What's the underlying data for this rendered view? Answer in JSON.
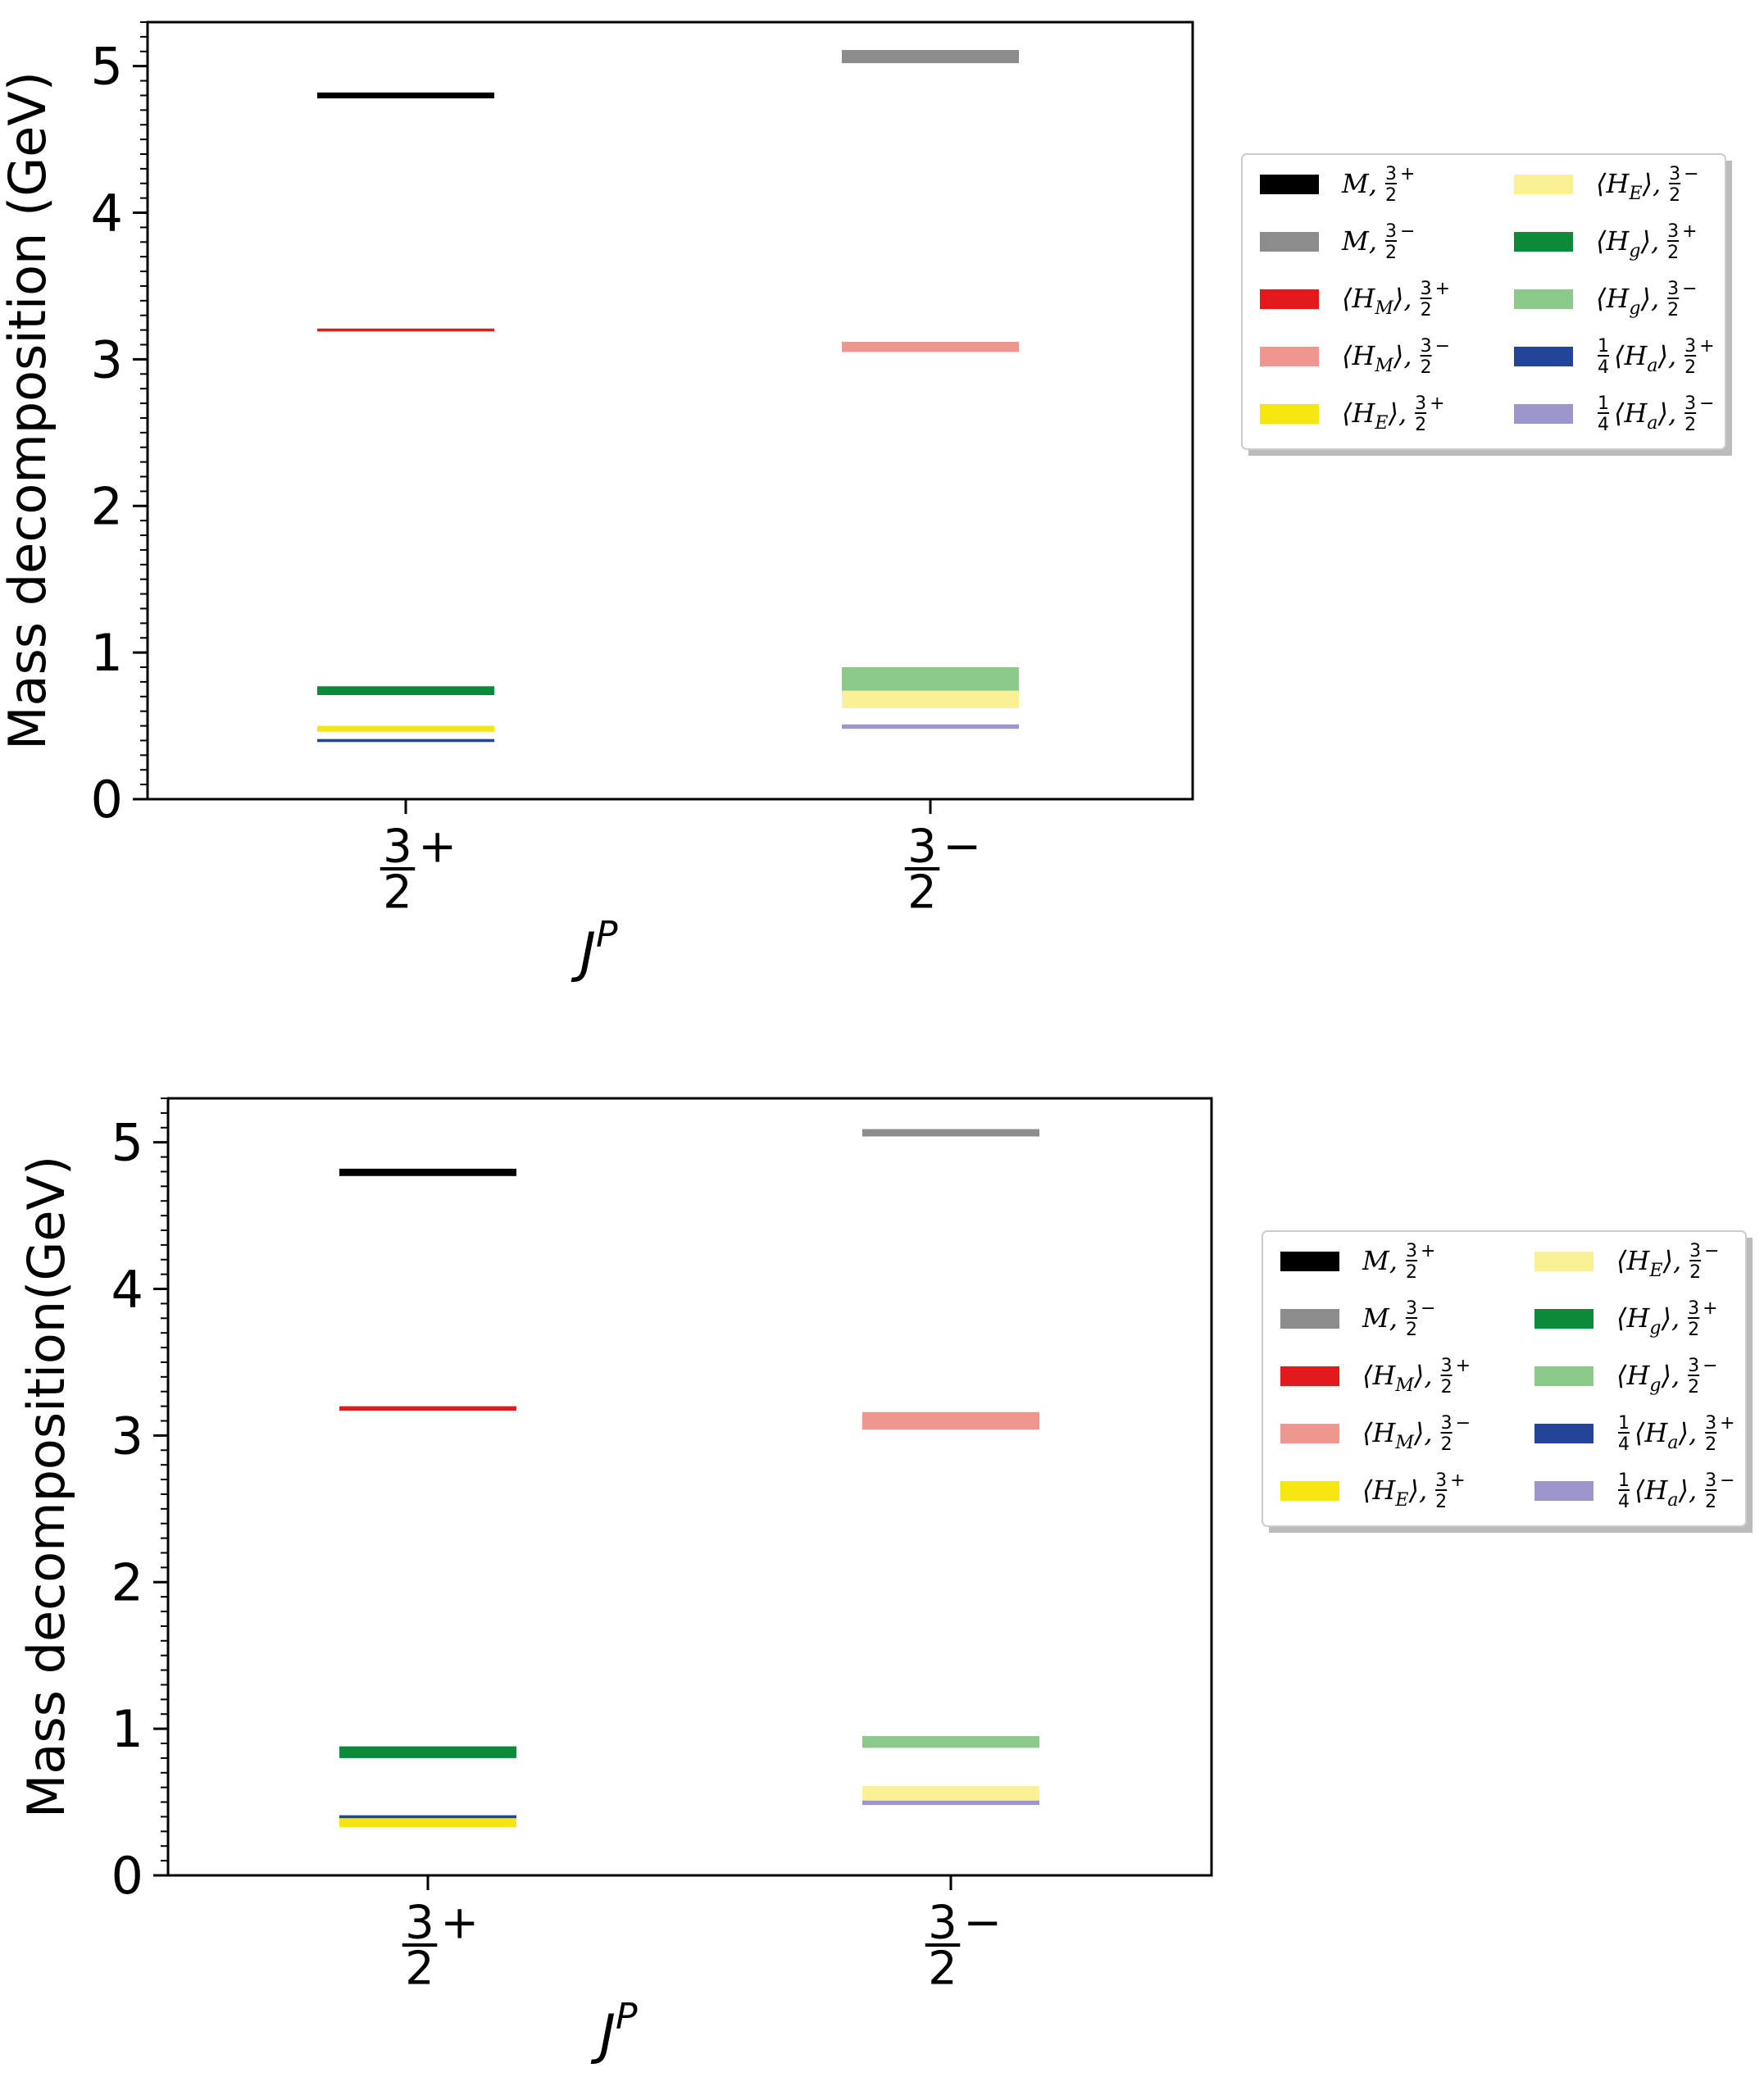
{
  "chart_data": [
    {
      "type": "bar",
      "categories": [
        "3/2+",
        "3/2−"
      ],
      "xlabel": "J^P",
      "ylabel": "Mass decomposition (GeV)",
      "ylim": [
        0,
        5.3
      ],
      "yticks": [
        0,
        1,
        2,
        3,
        4,
        5
      ],
      "legend_placement": "right",
      "series": [
        {
          "name": "M, 3/2+",
          "color": "#000000",
          "category": 0,
          "low": 4.78,
          "high": 4.82
        },
        {
          "name": "M, 3/2−",
          "color": "#8c8c8c",
          "category": 1,
          "low": 5.02,
          "high": 5.11
        },
        {
          "name": "⟨H_M⟩, 3/2+",
          "color": "#e31a1c",
          "category": 0,
          "low": 3.19,
          "high": 3.21
        },
        {
          "name": "⟨H_M⟩, 3/2−",
          "color": "#f1958f",
          "category": 1,
          "low": 3.05,
          "high": 3.12
        },
        {
          "name": "⟨H_E⟩, 3/2+",
          "color": "#f5e60f",
          "category": 0,
          "low": 0.46,
          "high": 0.5
        },
        {
          "name": "⟨H_E⟩, 3/2−",
          "color": "#fbf096",
          "category": 1,
          "low": 0.62,
          "high": 0.74
        },
        {
          "name": "⟨H_g⟩, 3/2+",
          "color": "#0b8a3a",
          "category": 0,
          "low": 0.71,
          "high": 0.77
        },
        {
          "name": "⟨H_g⟩, 3/2−",
          "color": "#8ac98a",
          "category": 1,
          "low": 0.73,
          "high": 0.9
        },
        {
          "name": "1/4⟨H_a⟩, 3/2+",
          "color": "#24449a",
          "category": 0,
          "low": 0.39,
          "high": 0.41
        },
        {
          "name": "1/4⟨H_a⟩, 3/2−",
          "color": "#9b96cb",
          "category": 1,
          "low": 0.48,
          "high": 0.51
        }
      ]
    },
    {
      "type": "bar",
      "categories": [
        "3/2+",
        "3/2−"
      ],
      "xlabel": "J^P",
      "ylabel": "Mass decomposition(GeV)",
      "ylim": [
        0,
        5.3
      ],
      "yticks": [
        0,
        1,
        2,
        3,
        4,
        5
      ],
      "legend_placement": "right",
      "series": [
        {
          "name": "M, 3/2+",
          "color": "#000000",
          "category": 0,
          "low": 4.77,
          "high": 4.82
        },
        {
          "name": "M, 3/2−",
          "color": "#8c8c8c",
          "category": 1,
          "low": 5.04,
          "high": 5.09
        },
        {
          "name": "⟨H_M⟩, 3/2+",
          "color": "#e31a1c",
          "category": 0,
          "low": 3.17,
          "high": 3.2
        },
        {
          "name": "⟨H_M⟩, 3/2−",
          "color": "#f1958f",
          "category": 1,
          "low": 3.04,
          "high": 3.16
        },
        {
          "name": "⟨H_E⟩, 3/2+",
          "color": "#f5e60f",
          "category": 0,
          "low": 0.33,
          "high": 0.39
        },
        {
          "name": "⟨H_E⟩, 3/2−",
          "color": "#fbf096",
          "category": 1,
          "low": 0.51,
          "high": 0.61
        },
        {
          "name": "⟨H_g⟩, 3/2+",
          "color": "#0b8a3a",
          "category": 0,
          "low": 0.8,
          "high": 0.88
        },
        {
          "name": "⟨H_g⟩, 3/2−",
          "color": "#8ac98a",
          "category": 1,
          "low": 0.87,
          "high": 0.95
        },
        {
          "name": "1/4⟨H_a⟩, 3/2+",
          "color": "#24449a",
          "category": 0,
          "low": 0.39,
          "high": 0.41
        },
        {
          "name": "1/4⟨H_a⟩, 3/2−",
          "color": "#9b96cb",
          "category": 1,
          "low": 0.48,
          "high": 0.51
        }
      ]
    }
  ]
}
